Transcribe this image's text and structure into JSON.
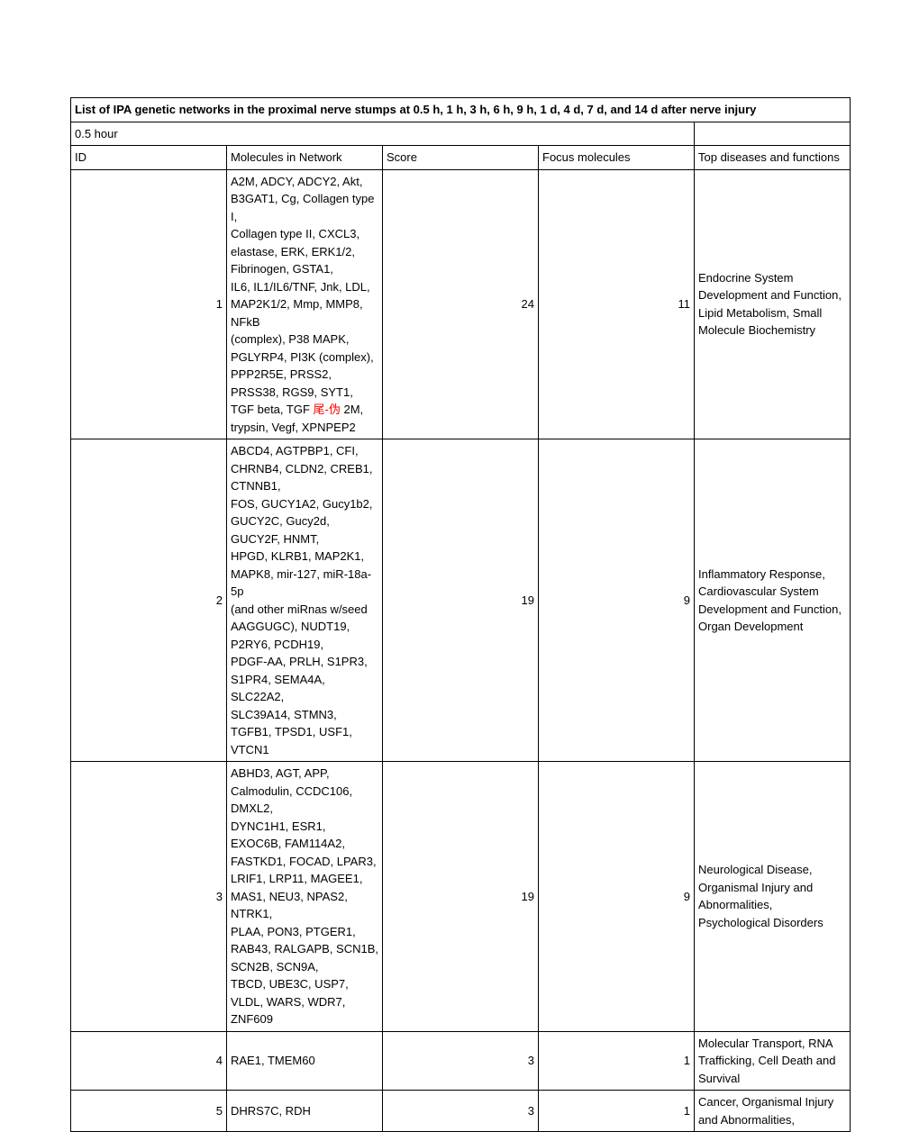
{
  "title": "List of IPA genetic networks in the proximal nerve stumps at 0.5 h, 1 h, 3 h, 6 h, 9 h, 1 d, 4 d, 7 d, and 14 d after nerve injury",
  "subhead": "0.5 hour",
  "headers": {
    "id": "ID",
    "molecules": "Molecules in Network",
    "score": "Score",
    "focus": "Focus molecules",
    "diseases": "Top diseases and functions"
  },
  "rows": [
    {
      "id": "1",
      "molecules_lines": [
        "A2M, ADCY, ADCY2, Akt, B3GAT1, Cg, Collagen type I,",
        "Collagen type II, CXCL3, elastase, ERK, ERK1/2, Fibrinogen, GSTA1,",
        "IL6, IL1/IL6/TNF, Jnk, LDL, MAP2K1/2, Mmp, MMP8, NFkB",
        "  (complex), P38 MAPK, PGLYRP4, PI3K (complex), PPP2R5E, PRSS2,",
        "PRSS38, RGS9, SYT1, TGF beta, TGF "
      ],
      "molecules_red": "尾-伪",
      "molecules_tail": " 2M, trypsin, Vegf, XPNPEP2",
      "score": "24",
      "focus": "11",
      "diseases": "Endocrine System Development and Function, Lipid Metabolism, Small Molecule Biochemistry"
    },
    {
      "id": "2",
      "molecules_lines": [
        "ABCD4, AGTPBP1, CFI, CHRNB4, CLDN2, CREB1, CTNNB1,",
        "FOS, GUCY1A2, Gucy1b2, GUCY2C, Gucy2d, GUCY2F, HNMT,",
        "HPGD, KLRB1, MAP2K1, MAPK8, mir-127, miR-18a-5p",
        "(and other miRnas w/seed AAGGUGC), NUDT19, P2RY6, PCDH19,",
        "PDGF-AA, PRLH, S1PR3, S1PR4, SEMA4A, SLC22A2,",
        "SLC39A14, STMN3, TGFB1, TPSD1, USF1, VTCN1"
      ],
      "molecules_red": "",
      "molecules_tail": "",
      "score": "19",
      "focus": "9",
      "diseases": "Inflammatory Response, Cardiovascular System Development and Function, Organ Development"
    },
    {
      "id": "3",
      "molecules_lines": [
        "ABHD3, AGT, APP, Calmodulin, CCDC106, DMXL2,",
        "DYNC1H1, ESR1, EXOC6B, FAM114A2, FASTKD1, FOCAD, LPAR3,",
        "LRIF1, LRP11, MAGEE1, MAS1, NEU3, NPAS2, NTRK1,",
        "PLAA, PON3, PTGER1, RAB43, RALGAPB, SCN1B, SCN2B, SCN9A,",
        "TBCD, UBE3C, USP7, VLDL, WARS, WDR7, ZNF609"
      ],
      "molecules_red": "",
      "molecules_tail": "",
      "score": "19",
      "focus": "9",
      "diseases": "Neurological Disease, Organismal Injury and Abnormalities, Psychological Disorders"
    },
    {
      "id": "4",
      "molecules_lines": [
        "RAE1, TMEM60"
      ],
      "molecules_red": "",
      "molecules_tail": "",
      "score": "3",
      "focus": "1",
      "diseases": "Molecular Transport, RNA Trafficking, Cell Death and Survival"
    },
    {
      "id": "5",
      "molecules_lines": [
        "DHRS7C, RDH"
      ],
      "molecules_red": "",
      "molecules_tail": "",
      "score": "3",
      "focus": "1",
      "diseases": "Cancer, Organismal Injury and Abnormalities,"
    }
  ]
}
